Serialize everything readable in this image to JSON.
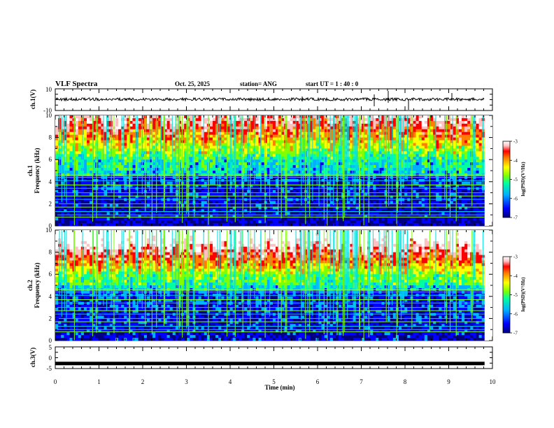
{
  "header": {
    "title": "VLF Spectra",
    "date": "Oct. 25, 2025",
    "station": "station= ANG",
    "start_ut": "start UT =   1 : 40 : 0"
  },
  "panels": {
    "ch1_wave": {
      "ylabel": "ch.1(V)",
      "yticks": [
        "10",
        "-10"
      ]
    },
    "ch1_spec": {
      "ylabel_line1": "ch.1",
      "ylabel_line2": "Frequency (kHz)",
      "yticks": [
        "0",
        "2",
        "4",
        "6",
        "8",
        "10"
      ]
    },
    "ch2_spec": {
      "ylabel_line1": "ch.2",
      "ylabel_line2": "Frequency (kHz)",
      "yticks": [
        "0",
        "2",
        "4",
        "6",
        "8",
        "10"
      ]
    },
    "ch3_wave": {
      "ylabel": "ch.3(V)",
      "yticks": [
        "5",
        "0",
        "-5"
      ]
    }
  },
  "xaxis": {
    "label": "Time (min)",
    "ticks": [
      "0",
      "1",
      "2",
      "3",
      "4",
      "5",
      "6",
      "7",
      "8",
      "9",
      "10"
    ]
  },
  "colorbar": {
    "label": "log(PSD)(V²/Hz)",
    "ticks": [
      "-3",
      "-4",
      "-5",
      "-6",
      "-7"
    ],
    "colors": [
      "#000080",
      "#0000ff",
      "#00b0ff",
      "#00ffa0",
      "#80ff00",
      "#ffff00",
      "#ff8000",
      "#ff0000",
      "#ffc0c0",
      "#ffffff"
    ]
  },
  "chart_data": [
    {
      "type": "line",
      "title": "",
      "ylabel": "ch.1(V)",
      "xlabel": "",
      "ylim": [
        -10,
        10
      ],
      "xlim": [
        0,
        10
      ],
      "note_level": 0
    },
    {
      "type": "heatmap",
      "ylabel": "ch.1 Frequency (kHz)",
      "ylim": [
        0,
        10
      ],
      "xlim": [
        0,
        10
      ],
      "zlim": [
        -7,
        -3
      ]
    },
    {
      "type": "heatmap",
      "ylabel": "ch.2 Frequency (kHz)",
      "ylim": [
        0,
        10
      ],
      "xlim": [
        0,
        10
      ],
      "zlim": [
        -7,
        -3
      ]
    },
    {
      "type": "line",
      "ylabel": "ch.3(V)",
      "xlabel": "Time (min)",
      "ylim": [
        -5,
        5
      ],
      "xlim": [
        0,
        10
      ],
      "level": -2
    }
  ]
}
